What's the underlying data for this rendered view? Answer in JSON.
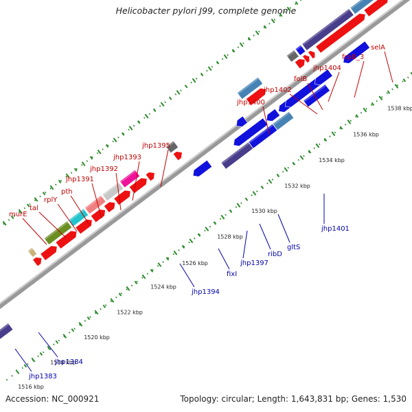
{
  "title": "Helicobacter pylori J99, complete genome",
  "footer": {
    "accession": "Accession: NC_000921",
    "summary": "Topology: circular; Length: 1,643,831 bp; Genes: 1,530"
  },
  "colors": {
    "backbone": "#999999",
    "forward_arrow": "#ee1111",
    "reverse_arrow": "#1111dd",
    "top_label": "#c00000",
    "bottom_label": "#0000aa",
    "grid_dots": "#2a8a2a",
    "feature_palette": [
      "#c8b27a",
      "#6b8e23",
      "#22c4cc",
      "#f08080",
      "#c8c8c8",
      "#ee1199",
      "#666666",
      "#4682b4",
      "#483d8b",
      "#00ffff",
      "#1111dd",
      "#ee8800"
    ]
  },
  "scale_ticks": [
    "1516 kbp",
    "1518 kbp",
    "1520 kbp",
    "1522 kbp",
    "1524 kbp",
    "1526 kbp",
    "1528 kbp",
    "1530 kbp",
    "1532 kbp",
    "1534 kbp",
    "1536 kbp",
    "1538 kbp"
  ],
  "top_genes": [
    "murE",
    "tal",
    "rplY",
    "pth",
    "jhp1391",
    "jhp1392",
    "jhp1393",
    "jhp1395",
    "jhp1400",
    "jhp1402",
    "folB",
    "jhp1404",
    "frpB_3",
    "selA"
  ],
  "bottom_genes": [
    "jhp1383",
    "jhp1384",
    "jhp1394",
    "fixI",
    "jhp1397",
    "ribD",
    "gltS",
    "jhp1401"
  ]
}
